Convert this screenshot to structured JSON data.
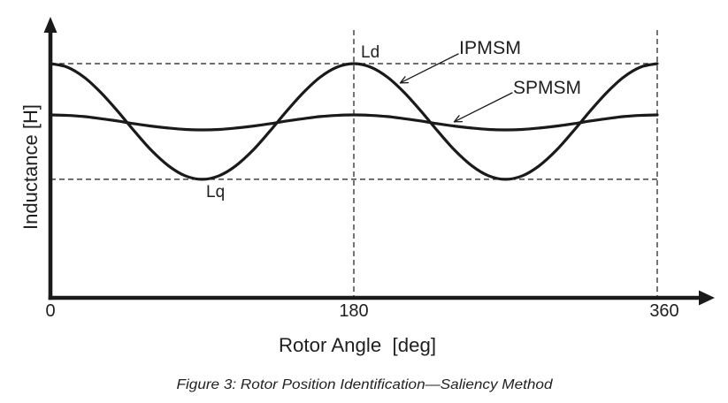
{
  "figure": {
    "caption": "Figure 3: Rotor Position Identification—Saliency Method"
  },
  "chart_data": {
    "type": "line",
    "title": "Figure 3: Rotor Position Identification—Saliency Method",
    "xlabel": "Rotor Angle  [deg]",
    "ylabel": "Inductance [H]",
    "xlim": [
      0,
      360
    ],
    "ylim": [
      0,
      1.2
    ],
    "x_ticks": [
      0,
      180,
      360
    ],
    "x_tick_labels": [
      "0",
      "180",
      "360"
    ],
    "y_ticks": [],
    "grid": false,
    "legend": null,
    "x": [
      0,
      10,
      20,
      30,
      40,
      50,
      60,
      70,
      80,
      90,
      100,
      110,
      120,
      130,
      140,
      150,
      160,
      170,
      180,
      190,
      200,
      210,
      220,
      230,
      240,
      250,
      260,
      270,
      280,
      290,
      300,
      310,
      320,
      330,
      340,
      350,
      360
    ],
    "series": [
      {
        "name": "IPMSM",
        "values": [
          1.0,
          0.985,
          0.942,
          0.876,
          0.796,
          0.71,
          0.629,
          0.564,
          0.521,
          0.506,
          0.521,
          0.564,
          0.629,
          0.71,
          0.796,
          0.876,
          0.942,
          0.985,
          1.0,
          0.985,
          0.942,
          0.876,
          0.796,
          0.71,
          0.629,
          0.564,
          0.521,
          0.506,
          0.521,
          0.564,
          0.629,
          0.71,
          0.796,
          0.876,
          0.942,
          0.985,
          1.0
        ]
      },
      {
        "name": "SPMSM",
        "values": [
          0.781,
          0.779,
          0.774,
          0.765,
          0.755,
          0.743,
          0.733,
          0.725,
          0.719,
          0.717,
          0.719,
          0.725,
          0.733,
          0.743,
          0.755,
          0.765,
          0.774,
          0.779,
          0.781,
          0.779,
          0.774,
          0.765,
          0.755,
          0.743,
          0.733,
          0.725,
          0.719,
          0.717,
          0.719,
          0.725,
          0.733,
          0.743,
          0.755,
          0.765,
          0.774,
          0.779,
          0.781
        ]
      }
    ],
    "reference_lines": [
      {
        "orientation": "horizontal",
        "y": 1.0,
        "label": "Ld",
        "style": "dashed"
      },
      {
        "orientation": "horizontal",
        "y": 0.506,
        "label": "Lq",
        "style": "dashed"
      },
      {
        "orientation": "vertical",
        "x": 180,
        "style": "dashed"
      },
      {
        "orientation": "vertical",
        "x": 360,
        "style": "dashed"
      }
    ],
    "annotations": [
      {
        "text": "Ld",
        "at": [
          180,
          1.0
        ],
        "arrow": false
      },
      {
        "text": "Lq",
        "at": [
          90,
          0.506
        ],
        "arrow": false
      },
      {
        "text": "IPMSM",
        "points_to": [
          207,
          0.92
        ],
        "arrow": true
      },
      {
        "text": "SPMSM",
        "points_to": [
          240,
          0.75
        ],
        "arrow": true
      }
    ]
  }
}
